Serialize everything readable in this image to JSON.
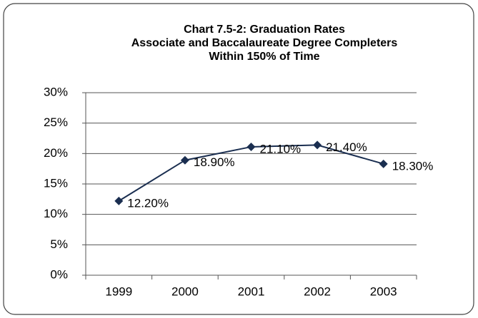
{
  "chart_data": {
    "type": "line",
    "title": [
      "Chart 7.5-2: Graduation Rates",
      "Associate and Baccalaureate Degree Completers",
      "Within 150% of Time"
    ],
    "categories": [
      "1999",
      "2000",
      "2001",
      "2002",
      "2003"
    ],
    "values": [
      12.2,
      18.9,
      21.1,
      21.4,
      18.3
    ],
    "value_labels": [
      "12.20%",
      "18.90%",
      "21.10%",
      "21.40%",
      "18.30%"
    ],
    "color": "#1a2e50",
    "ylim": [
      0,
      30
    ],
    "yticks": [
      {
        "value": 0,
        "label": "0%"
      },
      {
        "value": 5,
        "label": "5%"
      },
      {
        "value": 10,
        "label": "10%"
      },
      {
        "value": 15,
        "label": "15%"
      },
      {
        "value": 20,
        "label": "20%"
      },
      {
        "value": 25,
        "label": "25%"
      },
      {
        "value": 30,
        "label": "30%"
      }
    ],
    "grid": true
  }
}
